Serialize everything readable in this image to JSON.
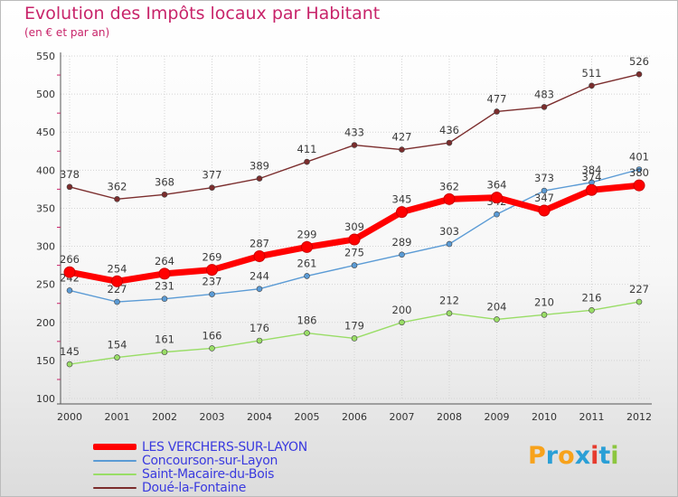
{
  "chart_data": {
    "type": "line",
    "title": "Evolution des Impôts locaux par Habitant",
    "subtitle": "(en € et par an)",
    "xlabel": "",
    "ylabel": "",
    "categories": [
      "2000",
      "2001",
      "2002",
      "2003",
      "2004",
      "2005",
      "2006",
      "2007",
      "2008",
      "2009",
      "2010",
      "2011",
      "2012"
    ],
    "ylim": [
      100,
      550
    ],
    "yticks": [
      "550",
      "500",
      "450",
      "400",
      "350",
      "300",
      "250",
      "200",
      "150",
      "100"
    ],
    "grid": true,
    "legend_position": "bottom-left",
    "series": [
      {
        "name": "LES VERCHERS-SUR-LAYON",
        "color": "#ff0000",
        "values": [
          266,
          254,
          264,
          269,
          287,
          299,
          309,
          345,
          362,
          364,
          347,
          374,
          380
        ]
      },
      {
        "name": "Concourson-sur-Layon",
        "color": "#5b9bd5",
        "values": [
          242,
          227,
          231,
          237,
          244,
          261,
          275,
          289,
          303,
          342,
          373,
          384,
          401
        ]
      },
      {
        "name": "Saint-Macaire-du-Bois",
        "color": "#99dd66",
        "values": [
          145,
          154,
          161,
          166,
          176,
          186,
          179,
          200,
          212,
          204,
          210,
          216,
          227
        ]
      },
      {
        "name": "Doué-la-Fontaine",
        "color": "#7b2d2d",
        "values": [
          378,
          362,
          368,
          377,
          389,
          411,
          433,
          427,
          436,
          477,
          483,
          511,
          526
        ]
      }
    ]
  },
  "brand": {
    "logo_text": "Proxiti"
  }
}
